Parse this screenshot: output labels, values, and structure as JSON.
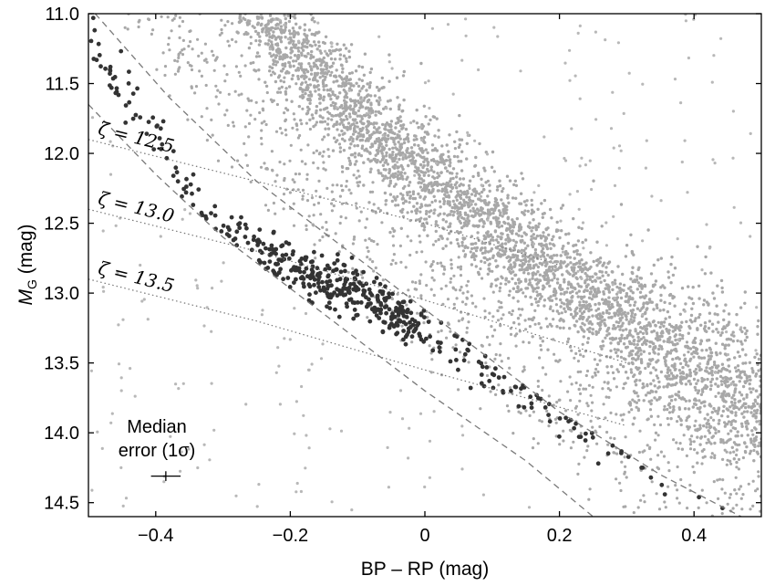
{
  "chart_data": {
    "type": "scatter",
    "xlabel": "BP – RP (mag)",
    "ylabel_main": "M",
    "ylabel_sub": "G",
    "ylabel_unit": " (mag)",
    "xlim": [
      -0.5,
      0.5
    ],
    "ylim": [
      11.0,
      14.6
    ],
    "y_inverted": true,
    "grid": false,
    "x_ticks": [
      -0.4,
      -0.2,
      0,
      0.2,
      0.4
    ],
    "x_tick_labels": [
      "−0.4",
      "−0.2",
      "0",
      "0.2",
      "0.4"
    ],
    "y_ticks": [
      11.0,
      11.5,
      12.0,
      12.5,
      13.0,
      13.5,
      14.0,
      14.5
    ],
    "y_tick_labels": [
      "11.0",
      "11.5",
      "12.0",
      "12.5",
      "13.0",
      "13.5",
      "14.0",
      "14.5"
    ],
    "colors": {
      "background_stars": "#a8a8a8",
      "selected_stars": "#333333",
      "boundary": "#7a7a7a",
      "iso_line": "#777777"
    },
    "boundaries": [
      {
        "style": "dashed",
        "points": [
          [
            -0.49,
            11.0
          ],
          [
            -0.38,
            11.6
          ],
          [
            -0.25,
            12.2
          ],
          [
            -0.1,
            12.75
          ],
          [
            0.05,
            13.3
          ],
          [
            0.2,
            13.85
          ],
          [
            0.35,
            14.3
          ],
          [
            0.47,
            14.6
          ]
        ]
      },
      {
        "style": "dashed",
        "points": [
          [
            -0.5,
            11.65
          ],
          [
            -0.4,
            12.15
          ],
          [
            -0.3,
            12.6
          ],
          [
            -0.15,
            13.15
          ],
          [
            0.0,
            13.7
          ],
          [
            0.15,
            14.2
          ],
          [
            0.25,
            14.6
          ]
        ]
      }
    ],
    "iso_lines": [
      {
        "label": "ζ = 12.5",
        "points": [
          [
            -0.5,
            11.9
          ],
          [
            -0.25,
            12.2
          ],
          [
            0.0,
            12.5
          ],
          [
            0.2,
            12.8
          ]
        ]
      },
      {
        "label": "ζ = 13.0",
        "points": [
          [
            -0.5,
            12.4
          ],
          [
            -0.25,
            12.7
          ],
          [
            0.0,
            13.05
          ],
          [
            0.3,
            13.5
          ]
        ]
      },
      {
        "label": "ζ = 13.5",
        "points": [
          [
            -0.5,
            12.9
          ],
          [
            -0.25,
            13.2
          ],
          [
            0.0,
            13.55
          ],
          [
            0.3,
            13.95
          ]
        ]
      }
    ],
    "main_sequence_ridge": [
      [
        -0.24,
        11.0
      ],
      [
        -0.15,
        11.5
      ],
      [
        -0.05,
        11.95
      ],
      [
        0.05,
        12.35
      ],
      [
        0.15,
        12.7
      ],
      [
        0.3,
        13.2
      ],
      [
        0.5,
        13.8
      ]
    ],
    "selected_sequence": [
      [
        -0.48,
        11.3
      ],
      [
        -0.4,
        11.9
      ],
      [
        -0.33,
        12.4
      ],
      [
        -0.22,
        12.8
      ],
      [
        -0.1,
        13.0
      ],
      [
        0.0,
        13.25
      ],
      [
        0.1,
        13.55
      ],
      [
        0.2,
        13.85
      ],
      [
        0.3,
        14.1
      ],
      [
        0.4,
        14.35
      ],
      [
        0.46,
        14.55
      ]
    ],
    "error_bar": {
      "x": -0.385,
      "y": 14.31,
      "x_err": 0.022,
      "y_err": 0.035
    },
    "annotations": {
      "median_line1": "Median",
      "median_line2": "error (1σ)"
    }
  }
}
